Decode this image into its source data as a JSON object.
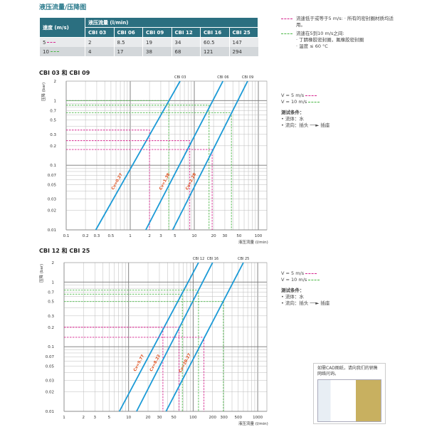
{
  "title": "液压流量/压降图",
  "table": {
    "speed_header": "速度 (m/s)",
    "flow_header": "液压流量 (l/min)",
    "columns": [
      "CBI 03",
      "CBI 06",
      "CBI 09",
      "CBI 12",
      "CBI 16",
      "CBI 25"
    ],
    "rows": [
      {
        "speed": "5",
        "values": [
          "2",
          "8.5",
          "19",
          "34",
          "60.5",
          "147"
        ]
      },
      {
        "speed": "10",
        "values": [
          "4",
          "17",
          "38",
          "68",
          "121",
          "294"
        ]
      }
    ]
  },
  "notes": {
    "magenta": "流速低于或等于5 m/s: · 所有的密封圈材质均适用。",
    "green_title": "流速在5到10 m/s之间:",
    "green_1": "· 丁腈橡胶密封圈，氟橡胶密封圈",
    "green_2": "· 温度 ≤ 60 °C"
  },
  "legend": {
    "v5": "V = 5 m/s",
    "v10": "V = 10 m/s",
    "test": "测试条件：",
    "fluid": "流体：水",
    "direction_a": "流向：插头",
    "direction_b": "插座"
  },
  "colors": {
    "line": "#1b9ad6",
    "v5": "#d6268f",
    "v10": "#4cb848",
    "cv": "#e0501e",
    "header": "#2b6f80"
  },
  "cad_note": "如需CAD图纸，请向我们的销售网络问询。",
  "chart_data": [
    {
      "type": "line",
      "title": "CBI 03 和 CBI 09",
      "xlabel": "液压流量 (l/min)",
      "ylabel": "压降 (bar)",
      "xscale": "log",
      "yscale": "log",
      "xlim": [
        0.1,
        130
      ],
      "ylim": [
        0.01,
        2
      ],
      "xticks": [
        "0.1",
        "0.2",
        "0.3",
        "0.5",
        "1",
        "2",
        "3",
        "5",
        "10",
        "20",
        "30",
        "50",
        "100"
      ],
      "yticks": [
        "0.01",
        "0.02",
        "0.03",
        "0.05",
        "0.07",
        "0.1",
        "0.2",
        "0.3",
        "0.5",
        "0.7",
        "1",
        "2"
      ],
      "series": [
        {
          "name": "CBI 03",
          "cv": "Cv=0.27",
          "points": [
            [
              0.29,
              0.01
            ],
            [
              6,
              2
            ]
          ],
          "v5": [
            2,
            0.35
          ],
          "v10": [
            4,
            1.0
          ]
        },
        {
          "name": "CBI 06",
          "cv": "Cv=1.38",
          "points": [
            [
              1.75,
              0.01
            ],
            [
              28,
              2
            ]
          ],
          "v5": [
            8.5,
            0.24
          ],
          "v10": [
            17,
            0.85
          ]
        },
        {
          "name": "CBI 09",
          "cv": "Cv=2.28",
          "points": [
            [
              4.6,
              0.01
            ],
            [
              68,
              2
            ]
          ],
          "v5": [
            19,
            0.175
          ],
          "v10": [
            38,
            0.65
          ]
        }
      ]
    },
    {
      "type": "line",
      "title": "CBI 12 和 CBI 25",
      "xlabel": "液压流量 (l/min)",
      "ylabel": "压降 (bar)",
      "xscale": "log",
      "yscale": "log",
      "xlim": [
        1,
        1300
      ],
      "ylim": [
        0.01,
        2
      ],
      "xticks": [
        "1",
        "2",
        "3",
        "5",
        "10",
        "20",
        "30",
        "50",
        "100",
        "200",
        "300",
        "500",
        "1000"
      ],
      "yticks": [
        "0.01",
        "0.02",
        "0.03",
        "0.05",
        "0.07",
        "0.1",
        "0.2",
        "0.3",
        "0.5",
        "0.7",
        "1",
        "2"
      ],
      "series": [
        {
          "name": "CBI 12",
          "cv": "Cv=5.77",
          "points": [
            [
              7.2,
              0.01
            ],
            [
              121,
              2
            ]
          ],
          "v5": [
            34,
            0.2
          ],
          "v10": [
            68,
            0.65
          ]
        },
        {
          "name": "CBI 16",
          "cv": "Cv=8.22",
          "points": [
            [
              13.3,
              0.01
            ],
            [
              200,
              2
            ]
          ],
          "v5": [
            60.5,
            0.2
          ],
          "v10": [
            121,
            0.75
          ]
        },
        {
          "name": "CBI 25",
          "cv": "Cv=20.27",
          "points": [
            [
              38,
              0.01
            ],
            [
              600,
              2
            ]
          ],
          "v5": [
            147,
            0.14
          ],
          "v10": [
            294,
            0.5
          ]
        }
      ]
    }
  ]
}
